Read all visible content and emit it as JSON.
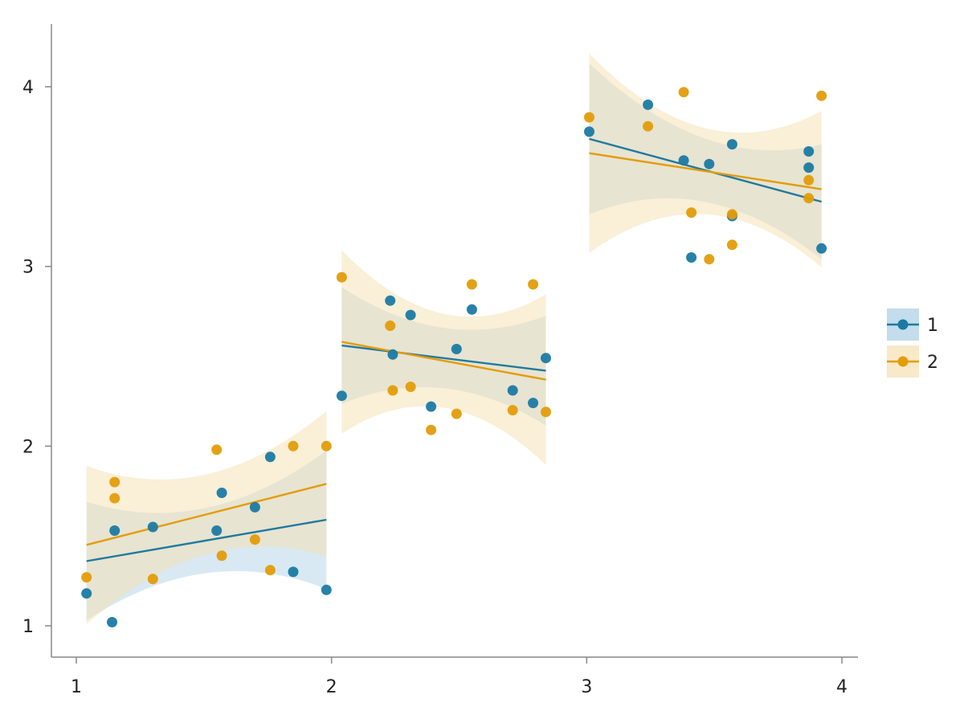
{
  "chart_data": {
    "type": "scatter",
    "title": "",
    "xlabel": "",
    "ylabel": "",
    "xlim": [
      0.9,
      4.06
    ],
    "ylim": [
      0.83,
      4.34
    ],
    "xticks": [
      "1",
      "2",
      "3",
      "4"
    ],
    "yticks": [
      "1",
      "2",
      "3",
      "4"
    ],
    "grid": false,
    "legend_position": "right",
    "series": [
      {
        "name": "1",
        "color": "#0072B2",
        "points": [
          [
            1.04,
            1.18
          ],
          [
            1.14,
            1.02
          ],
          [
            1.15,
            1.53
          ],
          [
            1.3,
            1.55
          ],
          [
            1.55,
            1.53
          ],
          [
            1.57,
            1.74
          ],
          [
            1.7,
            1.66
          ],
          [
            1.76,
            1.94
          ],
          [
            1.85,
            1.3
          ],
          [
            1.98,
            1.2
          ],
          [
            2.04,
            2.28
          ],
          [
            2.23,
            2.81
          ],
          [
            2.24,
            2.51
          ],
          [
            2.31,
            2.73
          ],
          [
            2.39,
            2.22
          ],
          [
            2.49,
            2.54
          ],
          [
            2.55,
            2.76
          ],
          [
            2.71,
            2.31
          ],
          [
            2.79,
            2.24
          ],
          [
            2.84,
            2.49
          ],
          [
            3.01,
            3.75
          ],
          [
            3.24,
            3.9
          ],
          [
            3.38,
            3.59
          ],
          [
            3.41,
            3.05
          ],
          [
            3.48,
            3.57
          ],
          [
            3.57,
            3.68
          ],
          [
            3.57,
            3.28
          ],
          [
            3.87,
            3.64
          ],
          [
            3.87,
            3.55
          ],
          [
            3.92,
            3.1
          ]
        ],
        "fits": [
          {
            "x": [
              1.04,
              1.98
            ],
            "y": [
              1.36,
              1.59
            ],
            "ci_low": [
              1.07,
              1.2
            ],
            "ci_high": [
              1.73,
              1.97
            ]
          },
          {
            "x": [
              2.04,
              2.84
            ],
            "y": [
              2.56,
              2.42
            ],
            "ci_low": [
              2.24,
              2.12
            ],
            "ci_high": [
              2.89,
              2.73
            ]
          },
          {
            "x": [
              3.01,
              3.92
            ],
            "y": [
              3.71,
              3.36
            ],
            "ci_low": [
              3.29,
              3.05
            ],
            "ci_high": [
              4.13,
              3.69
            ]
          }
        ]
      },
      {
        "name": "2",
        "color": "#E69F00",
        "points": [
          [
            1.04,
            1.27
          ],
          [
            1.15,
            1.8
          ],
          [
            1.15,
            1.71
          ],
          [
            1.3,
            1.26
          ],
          [
            1.55,
            1.98
          ],
          [
            1.57,
            1.39
          ],
          [
            1.7,
            1.48
          ],
          [
            1.76,
            1.31
          ],
          [
            1.85,
            2.0
          ],
          [
            1.98,
            2.0
          ],
          [
            2.04,
            2.94
          ],
          [
            2.23,
            2.67
          ],
          [
            2.24,
            2.31
          ],
          [
            2.31,
            2.33
          ],
          [
            2.39,
            2.09
          ],
          [
            2.49,
            2.18
          ],
          [
            2.55,
            2.9
          ],
          [
            2.71,
            2.2
          ],
          [
            2.79,
            2.9
          ],
          [
            2.84,
            2.19
          ],
          [
            3.01,
            3.83
          ],
          [
            3.24,
            3.78
          ],
          [
            3.38,
            3.97
          ],
          [
            3.41,
            3.3
          ],
          [
            3.48,
            3.04
          ],
          [
            3.57,
            3.29
          ],
          [
            3.57,
            3.12
          ],
          [
            3.87,
            3.48
          ],
          [
            3.87,
            3.38
          ],
          [
            3.92,
            3.95
          ]
        ],
        "fits": [
          {
            "x": [
              1.04,
              1.98
            ],
            "y": [
              1.45,
              1.79
            ],
            "ci_low": [
              0.98,
              1.38
            ],
            "ci_high": [
              1.86,
              2.19
            ]
          },
          {
            "x": [
              2.04,
              2.84
            ],
            "y": [
              2.58,
              2.37
            ],
            "ci_low": [
              2.07,
              1.89
            ],
            "ci_high": [
              3.09,
              2.84
            ]
          },
          {
            "x": [
              3.01,
              3.92
            ],
            "y": [
              3.63,
              3.43
            ],
            "ci_low": [
              3.07,
              2.99
            ],
            "ci_high": [
              4.18,
              3.86
            ]
          }
        ]
      }
    ]
  }
}
